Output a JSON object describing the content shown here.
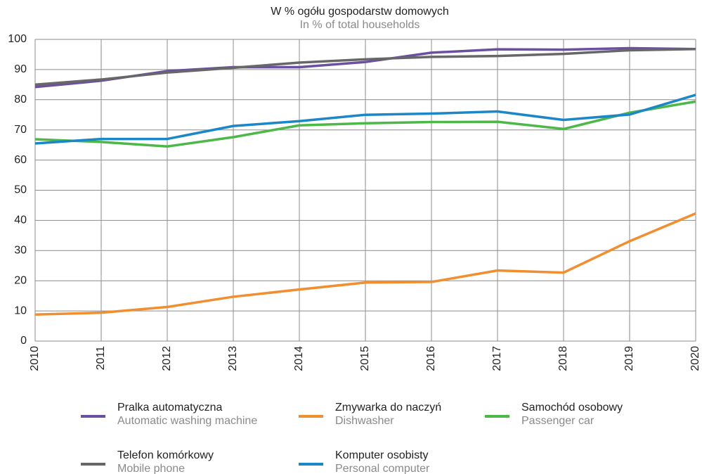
{
  "chart_data": {
    "type": "line",
    "title": "W % ogółu gospodarstw domowych",
    "subtitle": "In % of total households",
    "categories": [
      "2010",
      "2011",
      "2012",
      "2013",
      "2014",
      "2015",
      "2016",
      "2017",
      "2018",
      "2019",
      "2020"
    ],
    "ylim": [
      0,
      100
    ],
    "yticks": [
      0,
      10,
      20,
      30,
      40,
      50,
      60,
      70,
      80,
      90,
      100
    ],
    "grid": true,
    "series": [
      {
        "name": "Pralka automatyczna",
        "name_en": "Automatic washing machine",
        "color": "#6b4fa0",
        "values": [
          84.2,
          86.3,
          89.5,
          90.8,
          90.8,
          92.5,
          95.6,
          96.7,
          96.6,
          97.1,
          96.8
        ]
      },
      {
        "name": "Zmywarka do naczyń",
        "name_en": "Dishwasher",
        "color": "#f18e2f",
        "values": [
          8.8,
          9.4,
          11.3,
          14.7,
          17.1,
          19.4,
          19.6,
          23.4,
          22.7,
          33.1,
          42.3
        ]
      },
      {
        "name": "Samochód osobowy",
        "name_en": "Passenger car",
        "color": "#4db848",
        "values": [
          66.9,
          66.0,
          64.5,
          67.6,
          71.5,
          72.2,
          72.6,
          72.7,
          70.3,
          75.7,
          79.4
        ]
      },
      {
        "name": "Telefon komórkowy",
        "name_en": "Mobile phone",
        "color": "#676767",
        "values": [
          85.0,
          86.7,
          89.0,
          90.6,
          92.3,
          93.4,
          94.2,
          94.5,
          95.2,
          96.4,
          96.8
        ]
      },
      {
        "name": "Komputer osobisty",
        "name_en": "Personal computer",
        "color": "#1b87c9",
        "values": [
          65.5,
          67.0,
          67.0,
          71.3,
          72.9,
          75.0,
          75.4,
          76.1,
          73.3,
          75.1,
          81.6
        ]
      }
    ]
  }
}
